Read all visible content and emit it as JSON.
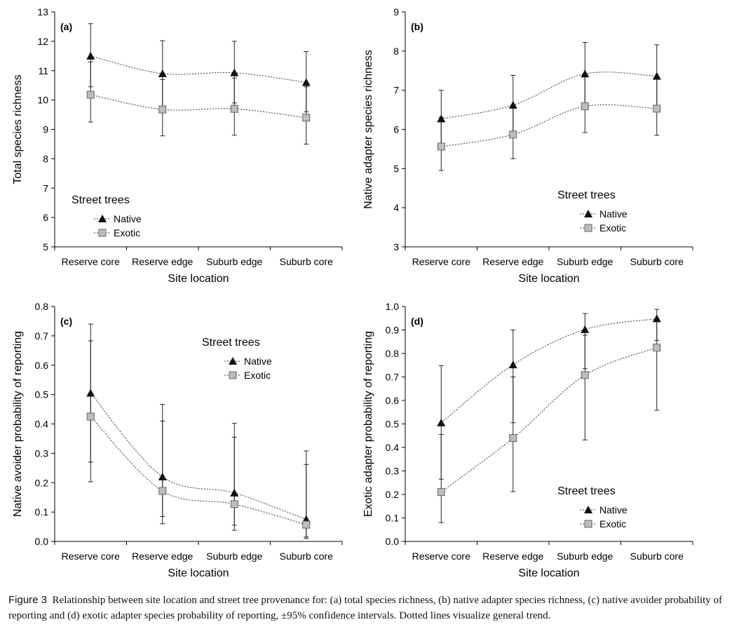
{
  "caption": {
    "label": "Figure 3",
    "text": "Relationship between site location and street tree provenance for: (a) total species richness, (b) native adapter species richness, (c) native avoider probability of reporting and (d) exotic adapter species probability of reporting, ±95% confidence intervals. Dotted lines visualize general trend."
  },
  "colors": {
    "native": "#111111",
    "exotic": "#bdbdbd",
    "exotic_edge": "#666666",
    "axis": "#000000"
  },
  "chart_data": [
    {
      "type": "line",
      "panel_label": "(a)",
      "categories": [
        "Reserve core",
        "Reserve edge",
        "Suburb edge",
        "Suburb core"
      ],
      "xlabel": "Site location",
      "ylabel": "Total species richness",
      "ylim": [
        5,
        13
      ],
      "yticks": [
        "5",
        "6",
        "7",
        "8",
        "9",
        "10",
        "11",
        "12",
        "13"
      ],
      "legend": {
        "title": "Street trees",
        "placement": "bottom-left"
      },
      "series": [
        {
          "name": "Native",
          "marker": "triangle",
          "values": [
            11.5,
            10.9,
            10.93,
            10.6
          ],
          "ci_low": [
            10.45,
            9.8,
            9.9,
            9.6
          ],
          "ci_high": [
            12.6,
            12.02,
            12.0,
            11.65
          ]
        },
        {
          "name": "Exotic",
          "marker": "square",
          "values": [
            10.18,
            9.68,
            9.7,
            9.4
          ],
          "ci_low": [
            9.25,
            8.78,
            8.8,
            8.5
          ],
          "ci_high": [
            11.3,
            10.7,
            10.75,
            10.45
          ]
        }
      ]
    },
    {
      "type": "line",
      "panel_label": "(b)",
      "categories": [
        "Reserve core",
        "Reserve edge",
        "Suburb edge",
        "Suburb core"
      ],
      "xlabel": "Site location",
      "ylabel": "Native adapter species richness",
      "ylim": [
        3,
        9
      ],
      "yticks": [
        "3",
        "4",
        "5",
        "6",
        "7",
        "8",
        "9"
      ],
      "legend": {
        "title": "Street trees",
        "placement": "lower-right"
      },
      "series": [
        {
          "name": "Native",
          "marker": "triangle",
          "values": [
            6.27,
            6.62,
            7.42,
            7.36
          ],
          "ci_low": [
            5.5,
            5.88,
            6.62,
            6.55
          ],
          "ci_high": [
            7.0,
            7.38,
            8.22,
            8.16
          ]
        },
        {
          "name": "Exotic",
          "marker": "square",
          "values": [
            5.56,
            5.87,
            6.59,
            6.53
          ],
          "ci_low": [
            4.95,
            5.25,
            5.92,
            5.85
          ],
          "ci_high": [
            6.3,
            6.62,
            7.38,
            7.3
          ]
        }
      ]
    },
    {
      "type": "line",
      "panel_label": "(c)",
      "categories": [
        "Reserve core",
        "Reserve edge",
        "Suburb edge",
        "Suburb core"
      ],
      "xlabel": "Site location",
      "ylabel": "Native avoider probability of reporting",
      "ylim": [
        0,
        0.8
      ],
      "yticks": [
        "0.0",
        "0.1",
        "0.2",
        "0.3",
        "0.4",
        "0.5",
        "0.6",
        "0.7",
        "0.8"
      ],
      "legend": {
        "title": "Street trees",
        "placement": "top-right"
      },
      "series": [
        {
          "name": "Native",
          "marker": "triangle",
          "values": [
            0.505,
            0.22,
            0.165,
            0.075
          ],
          "ci_low": [
            0.27,
            0.085,
            0.055,
            0.015
          ],
          "ci_high": [
            0.74,
            0.467,
            0.402,
            0.308
          ]
        },
        {
          "name": "Exotic",
          "marker": "square",
          "values": [
            0.425,
            0.172,
            0.127,
            0.057
          ],
          "ci_low": [
            0.203,
            0.06,
            0.038,
            0.01
          ],
          "ci_high": [
            0.683,
            0.41,
            0.355,
            0.262
          ]
        }
      ]
    },
    {
      "type": "line",
      "panel_label": "(d)",
      "categories": [
        "Reserve core",
        "Reserve edge",
        "Suburb edge",
        "Suburb core"
      ],
      "xlabel": "Site location",
      "ylabel": "Exotic adapter probability of reporting",
      "ylim": [
        0,
        1
      ],
      "yticks": [
        "0.0",
        "0.1",
        "0.2",
        "0.3",
        "0.4",
        "0.5",
        "0.6",
        "0.7",
        "0.8",
        "0.9",
        "1.0"
      ],
      "legend": {
        "title": "Street trees",
        "placement": "lower-right"
      },
      "series": [
        {
          "name": "Native",
          "marker": "triangle",
          "values": [
            0.505,
            0.752,
            0.902,
            0.948
          ],
          "ci_low": [
            0.265,
            0.505,
            0.735,
            0.855
          ],
          "ci_high": [
            0.748,
            0.9,
            0.97,
            0.988
          ]
        },
        {
          "name": "Exotic",
          "marker": "square",
          "values": [
            0.21,
            0.44,
            0.708,
            0.825
          ],
          "ci_low": [
            0.08,
            0.212,
            0.432,
            0.558
          ],
          "ci_high": [
            0.455,
            0.7,
            0.878,
            0.948
          ]
        }
      ]
    }
  ]
}
